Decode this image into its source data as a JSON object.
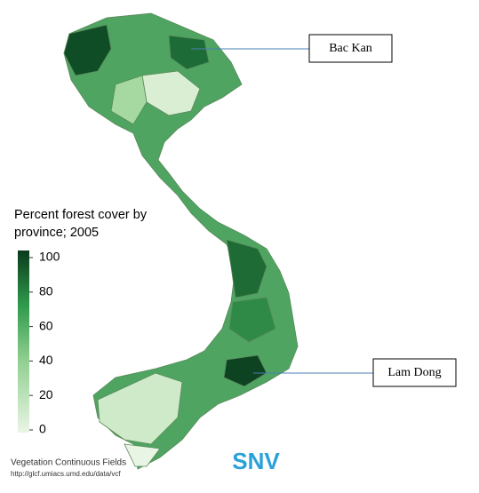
{
  "legend": {
    "title": [
      "Percent forest cover by",
      "province; 2005"
    ],
    "range": [
      0,
      100
    ],
    "ticks": [
      0,
      20,
      40,
      60,
      80,
      100
    ]
  },
  "callouts": [
    "Bac Kan",
    "Lam Dong"
  ],
  "source": [
    "Vegetation Continuous Fields",
    "http://glcf.umiacs.umd.edu/data/vcf"
  ],
  "logo": "SNV"
}
